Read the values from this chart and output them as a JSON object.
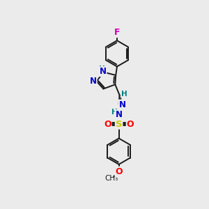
{
  "background_color": "#ebebeb",
  "bond_color": "#1a1a1a",
  "atom_colors": {
    "N": "#0000cc",
    "O": "#ff0000",
    "S": "#cccc00",
    "F": "#cc00bb",
    "H": "#008080",
    "C": "#1a1a1a"
  },
  "figsize": [
    3.0,
    3.0
  ],
  "dpi": 100
}
